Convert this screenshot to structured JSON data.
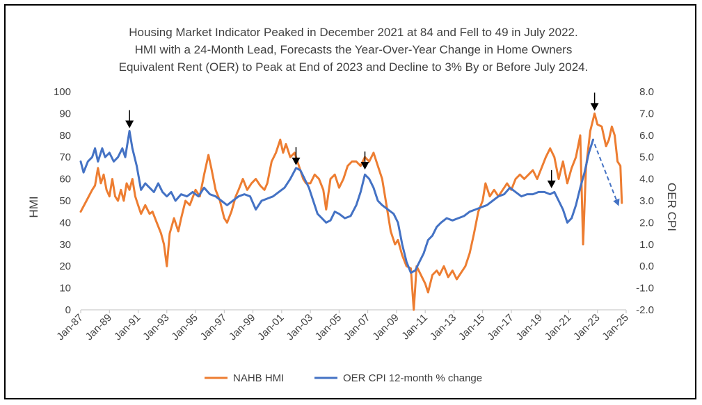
{
  "chart_data": {
    "type": "line",
    "title_lines": [
      "Housing Market Indicator Peaked in December 2021 at 84 and Fell to 49 in July 2022.",
      "HMI with a 24-Month Lead, Forecasts the Year-Over-Year Change in Home Owners",
      "Equivalent Rent (OER) to Peak at End of 2023 and Decline to 3% By or Before July 2024."
    ],
    "ylabel_left": "HMI",
    "ylabel_right": "OER CPI",
    "ylim_left": [
      0,
      100
    ],
    "ylim_right": [
      -2,
      8
    ],
    "yticks_left": [
      "0",
      "10",
      "20",
      "30",
      "40",
      "50",
      "60",
      "70",
      "80",
      "90",
      "100"
    ],
    "yticks_right": [
      "-2.0",
      "-1.0",
      "0.0",
      "1.0",
      "2.0",
      "3.0",
      "4.0",
      "5.0",
      "6.0",
      "7.0",
      "8.0"
    ],
    "x_range": [
      1987.0,
      2025.0
    ],
    "xticks": [
      {
        "label": "Jan-87",
        "x": 1987
      },
      {
        "label": "Jan-89",
        "x": 1989
      },
      {
        "label": "Jan-91",
        "x": 1991
      },
      {
        "label": "Jan-93",
        "x": 1993
      },
      {
        "label": "Jan-95",
        "x": 1995
      },
      {
        "label": "Jan-97",
        "x": 1997
      },
      {
        "label": "Jan-99",
        "x": 1999
      },
      {
        "label": "Jan-01",
        "x": 2001
      },
      {
        "label": "Jan-03",
        "x": 2003
      },
      {
        "label": "Jan-05",
        "x": 2005
      },
      {
        "label": "Jan-07",
        "x": 2007
      },
      {
        "label": "Jan-09",
        "x": 2009
      },
      {
        "label": "Jan-11",
        "x": 2011
      },
      {
        "label": "Jan-13",
        "x": 2013
      },
      {
        "label": "Jan-15",
        "x": 2015
      },
      {
        "label": "Jan-17",
        "x": 2017
      },
      {
        "label": "Jan-19",
        "x": 2019
      },
      {
        "label": "Jan-21",
        "x": 2021
      },
      {
        "label": "Jan-23",
        "x": 2023
      },
      {
        "label": "Jan-25",
        "x": 2025
      }
    ],
    "grid": false,
    "legend_position": "bottom",
    "series": [
      {
        "name": "NAHB HMI",
        "color": "#ED7D31",
        "axis": "left",
        "points": [
          [
            1987.0,
            45
          ],
          [
            1987.4,
            50
          ],
          [
            1987.8,
            55
          ],
          [
            1988.0,
            57
          ],
          [
            1988.2,
            65
          ],
          [
            1988.4,
            58
          ],
          [
            1988.6,
            62
          ],
          [
            1988.8,
            55
          ],
          [
            1989.0,
            52
          ],
          [
            1989.2,
            60
          ],
          [
            1989.4,
            52
          ],
          [
            1989.6,
            50
          ],
          [
            1989.8,
            55
          ],
          [
            1990.0,
            50
          ],
          [
            1990.2,
            58
          ],
          [
            1990.4,
            55
          ],
          [
            1990.6,
            60
          ],
          [
            1990.8,
            52
          ],
          [
            1991.0,
            48
          ],
          [
            1991.2,
            44
          ],
          [
            1991.5,
            48
          ],
          [
            1991.8,
            44
          ],
          [
            1992.0,
            45
          ],
          [
            1992.3,
            40
          ],
          [
            1992.6,
            35
          ],
          [
            1992.8,
            30
          ],
          [
            1993.0,
            20
          ],
          [
            1993.2,
            35
          ],
          [
            1993.5,
            42
          ],
          [
            1993.8,
            36
          ],
          [
            1994.0,
            42
          ],
          [
            1994.3,
            50
          ],
          [
            1994.6,
            48
          ],
          [
            1995.0,
            55
          ],
          [
            1995.3,
            52
          ],
          [
            1995.6,
            62
          ],
          [
            1995.9,
            71
          ],
          [
            1996.1,
            65
          ],
          [
            1996.4,
            55
          ],
          [
            1996.7,
            50
          ],
          [
            1997.0,
            42
          ],
          [
            1997.2,
            40
          ],
          [
            1997.5,
            45
          ],
          [
            1997.8,
            52
          ],
          [
            1998.0,
            55
          ],
          [
            1998.3,
            60
          ],
          [
            1998.6,
            55
          ],
          [
            1998.9,
            58
          ],
          [
            1999.2,
            60
          ],
          [
            1999.5,
            57
          ],
          [
            1999.8,
            55
          ],
          [
            2000.0,
            58
          ],
          [
            2000.3,
            68
          ],
          [
            2000.6,
            72
          ],
          [
            2000.9,
            78
          ],
          [
            2001.1,
            72
          ],
          [
            2001.3,
            76
          ],
          [
            2001.6,
            70
          ],
          [
            2001.9,
            72
          ],
          [
            2002.2,
            66
          ],
          [
            2002.5,
            60
          ],
          [
            2002.7,
            58
          ],
          [
            2003.0,
            58
          ],
          [
            2003.3,
            62
          ],
          [
            2003.6,
            60
          ],
          [
            2003.9,
            55
          ],
          [
            2004.1,
            46
          ],
          [
            2004.4,
            60
          ],
          [
            2004.7,
            62
          ],
          [
            2005.0,
            56
          ],
          [
            2005.3,
            60
          ],
          [
            2005.6,
            66
          ],
          [
            2005.9,
            68
          ],
          [
            2006.2,
            68
          ],
          [
            2006.5,
            66
          ],
          [
            2006.8,
            70
          ],
          [
            2007.1,
            68
          ],
          [
            2007.4,
            72
          ],
          [
            2007.7,
            66
          ],
          [
            2008.0,
            60
          ],
          [
            2008.3,
            48
          ],
          [
            2008.6,
            36
          ],
          [
            2008.9,
            30
          ],
          [
            2009.1,
            32
          ],
          [
            2009.4,
            25
          ],
          [
            2009.7,
            20
          ],
          [
            2010.0,
            19
          ],
          [
            2010.2,
            0
          ],
          [
            2010.4,
            20
          ],
          [
            2010.7,
            16
          ],
          [
            2011.0,
            12
          ],
          [
            2011.2,
            8
          ],
          [
            2011.5,
            16
          ],
          [
            2011.8,
            18
          ],
          [
            2012.0,
            16
          ],
          [
            2012.3,
            20
          ],
          [
            2012.6,
            15
          ],
          [
            2012.9,
            18
          ],
          [
            2013.2,
            14
          ],
          [
            2013.5,
            17
          ],
          [
            2013.8,
            20
          ],
          [
            2014.1,
            26
          ],
          [
            2014.4,
            35
          ],
          [
            2014.7,
            45
          ],
          [
            2015.0,
            50
          ],
          [
            2015.2,
            58
          ],
          [
            2015.5,
            52
          ],
          [
            2015.8,
            55
          ],
          [
            2016.1,
            52
          ],
          [
            2016.4,
            55
          ],
          [
            2016.7,
            58
          ],
          [
            2017.0,
            55
          ],
          [
            2017.3,
            60
          ],
          [
            2017.6,
            62
          ],
          [
            2017.9,
            60
          ],
          [
            2018.2,
            62
          ],
          [
            2018.5,
            64
          ],
          [
            2018.8,
            60
          ],
          [
            2019.1,
            65
          ],
          [
            2019.4,
            70
          ],
          [
            2019.7,
            74
          ],
          [
            2020.0,
            70
          ],
          [
            2020.3,
            60
          ],
          [
            2020.6,
            68
          ],
          [
            2020.9,
            58
          ],
          [
            2021.2,
            65
          ],
          [
            2021.5,
            70
          ],
          [
            2021.8,
            80
          ],
          [
            2022.0,
            30
          ],
          [
            2022.2,
            65
          ],
          [
            2022.5,
            82
          ],
          [
            2022.8,
            90
          ],
          [
            2023.0,
            85
          ],
          [
            2023.3,
            84
          ],
          [
            2023.6,
            75
          ],
          [
            2023.8,
            78
          ],
          [
            2024.0,
            84
          ],
          [
            2024.2,
            80
          ],
          [
            2024.4,
            68
          ],
          [
            2024.6,
            66
          ],
          [
            2024.7,
            49
          ]
        ]
      },
      {
        "name": "OER CPI 12-month % change",
        "color": "#4472C4",
        "axis": "right",
        "points": [
          [
            1987.0,
            4.8
          ],
          [
            1987.2,
            4.3
          ],
          [
            1987.5,
            4.8
          ],
          [
            1987.8,
            5.0
          ],
          [
            1988.0,
            5.4
          ],
          [
            1988.2,
            4.8
          ],
          [
            1988.5,
            5.4
          ],
          [
            1988.7,
            5.0
          ],
          [
            1989.0,
            5.2
          ],
          [
            1989.3,
            4.8
          ],
          [
            1989.6,
            5.0
          ],
          [
            1989.9,
            5.4
          ],
          [
            1990.1,
            5.0
          ],
          [
            1990.4,
            6.2
          ],
          [
            1990.6,
            5.4
          ],
          [
            1990.9,
            4.6
          ],
          [
            1991.2,
            3.5
          ],
          [
            1991.5,
            3.8
          ],
          [
            1991.8,
            3.6
          ],
          [
            1992.1,
            3.4
          ],
          [
            1992.4,
            3.8
          ],
          [
            1992.7,
            3.4
          ],
          [
            1993.0,
            3.2
          ],
          [
            1993.3,
            3.4
          ],
          [
            1993.6,
            3.0
          ],
          [
            1994.0,
            3.3
          ],
          [
            1994.4,
            3.2
          ],
          [
            1994.8,
            3.4
          ],
          [
            1995.2,
            3.2
          ],
          [
            1995.6,
            3.6
          ],
          [
            1996.0,
            3.3
          ],
          [
            1996.4,
            3.2
          ],
          [
            1996.8,
            3.0
          ],
          [
            1997.2,
            2.8
          ],
          [
            1997.6,
            3.0
          ],
          [
            1998.0,
            3.2
          ],
          [
            1998.4,
            3.3
          ],
          [
            1998.8,
            3.2
          ],
          [
            1999.2,
            2.6
          ],
          [
            1999.6,
            3.0
          ],
          [
            2000.0,
            3.1
          ],
          [
            2000.4,
            3.2
          ],
          [
            2000.8,
            3.4
          ],
          [
            2001.2,
            3.6
          ],
          [
            2001.6,
            4.0
          ],
          [
            2002.0,
            4.5
          ],
          [
            2002.3,
            4.4
          ],
          [
            2002.6,
            4.0
          ],
          [
            2002.9,
            3.6
          ],
          [
            2003.2,
            3.0
          ],
          [
            2003.5,
            2.4
          ],
          [
            2003.8,
            2.2
          ],
          [
            2004.1,
            2.0
          ],
          [
            2004.4,
            2.1
          ],
          [
            2004.7,
            2.5
          ],
          [
            2005.0,
            2.4
          ],
          [
            2005.4,
            2.2
          ],
          [
            2005.8,
            2.3
          ],
          [
            2006.2,
            2.8
          ],
          [
            2006.5,
            3.4
          ],
          [
            2006.8,
            4.2
          ],
          [
            2007.1,
            4.0
          ],
          [
            2007.4,
            3.6
          ],
          [
            2007.7,
            3.0
          ],
          [
            2008.0,
            2.8
          ],
          [
            2008.4,
            2.6
          ],
          [
            2008.8,
            2.4
          ],
          [
            2009.1,
            2.0
          ],
          [
            2009.4,
            1.0
          ],
          [
            2009.7,
            0.2
          ],
          [
            2010.0,
            -0.3
          ],
          [
            2010.3,
            -0.2
          ],
          [
            2010.6,
            0.2
          ],
          [
            2010.9,
            0.6
          ],
          [
            2011.2,
            1.2
          ],
          [
            2011.5,
            1.4
          ],
          [
            2011.8,
            1.8
          ],
          [
            2012.1,
            2.0
          ],
          [
            2012.5,
            2.2
          ],
          [
            2012.9,
            2.1
          ],
          [
            2013.3,
            2.2
          ],
          [
            2013.7,
            2.3
          ],
          [
            2014.1,
            2.5
          ],
          [
            2014.5,
            2.6
          ],
          [
            2014.9,
            2.7
          ],
          [
            2015.3,
            2.8
          ],
          [
            2015.7,
            3.0
          ],
          [
            2016.1,
            3.2
          ],
          [
            2016.5,
            3.3
          ],
          [
            2016.9,
            3.6
          ],
          [
            2017.3,
            3.4
          ],
          [
            2017.7,
            3.2
          ],
          [
            2018.1,
            3.3
          ],
          [
            2018.5,
            3.3
          ],
          [
            2018.9,
            3.4
          ],
          [
            2019.3,
            3.4
          ],
          [
            2019.7,
            3.3
          ],
          [
            2020.0,
            3.4
          ],
          [
            2020.3,
            3.0
          ],
          [
            2020.6,
            2.6
          ],
          [
            2020.9,
            2.0
          ],
          [
            2021.2,
            2.2
          ],
          [
            2021.5,
            2.8
          ],
          [
            2021.8,
            3.6
          ],
          [
            2022.1,
            4.3
          ],
          [
            2022.4,
            5.2
          ],
          [
            2022.7,
            5.8
          ]
        ]
      }
    ],
    "annotations": [
      {
        "type": "arrow-down",
        "x": 1990.4,
        "axis": "right",
        "y": 6.2
      },
      {
        "type": "arrow-down",
        "x": 2002.0,
        "axis": "right",
        "y": 4.5
      },
      {
        "type": "arrow-down",
        "x": 2006.8,
        "axis": "right",
        "y": 4.3
      },
      {
        "type": "arrow-down",
        "x": 2019.8,
        "axis": "right",
        "y": 3.45
      },
      {
        "type": "arrow-down",
        "x": 2022.8,
        "axis": "left",
        "y": 90
      },
      {
        "type": "dashed-forecast",
        "from": [
          2022.8,
          5.6
        ],
        "to": [
          2024.4,
          2.9
        ],
        "axis": "right",
        "color": "#4472C4"
      }
    ]
  }
}
